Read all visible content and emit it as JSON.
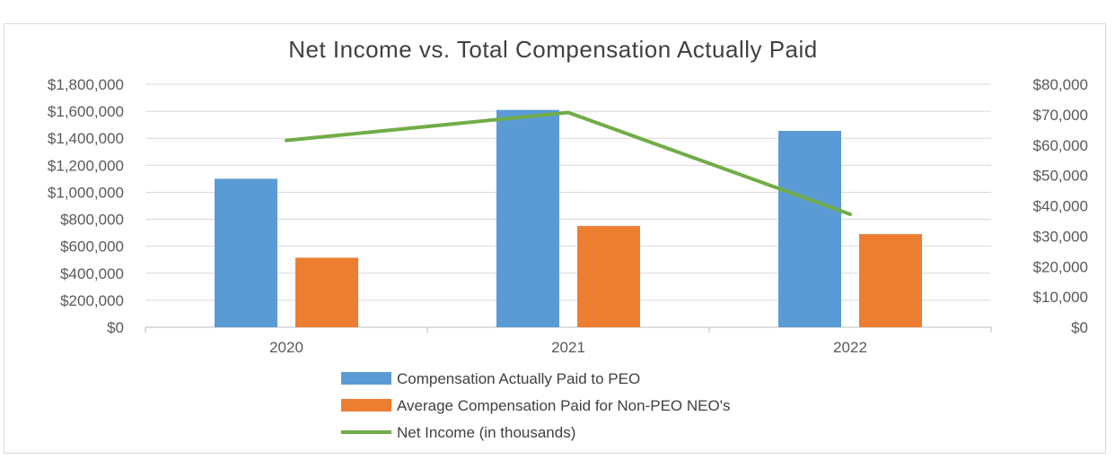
{
  "chart_data": {
    "type": "bar",
    "title": "Net Income vs. Total Compensation Actually Paid",
    "categories": [
      "2020",
      "2021",
      "2022"
    ],
    "series": [
      {
        "name": "Compensation Actually Paid to PEO",
        "type": "bar",
        "axis": "left",
        "color": "#5b9bd5",
        "values": [
          1100000,
          1610000,
          1455000
        ]
      },
      {
        "name": "Average  Compensation Paid for Non-PEO NEO's",
        "type": "bar",
        "axis": "left",
        "color": "#ed7d31",
        "values": [
          515000,
          750000,
          690000
        ]
      },
      {
        "name": "Net Income (in thousands)",
        "type": "line",
        "axis": "right",
        "color": "#70ad47",
        "values": [
          61500,
          70700,
          37200
        ]
      }
    ],
    "y_left": {
      "min": 0,
      "max": 1800000,
      "step": 200000,
      "tick_labels": [
        "$0",
        "$200,000",
        "$400,000",
        "$600,000",
        "$800,000",
        "$1,000,000",
        "$1,200,000",
        "$1,400,000",
        "$1,600,000",
        "$1,800,000"
      ]
    },
    "y_right": {
      "min": 0,
      "max": 80000,
      "step": 10000,
      "tick_labels": [
        "$0",
        "$10,000",
        "$20,000",
        "$30,000",
        "$40,000",
        "$50,000",
        "$60,000",
        "$70,000",
        "$80,000"
      ]
    },
    "grid": true,
    "legend_position": "bottom"
  }
}
